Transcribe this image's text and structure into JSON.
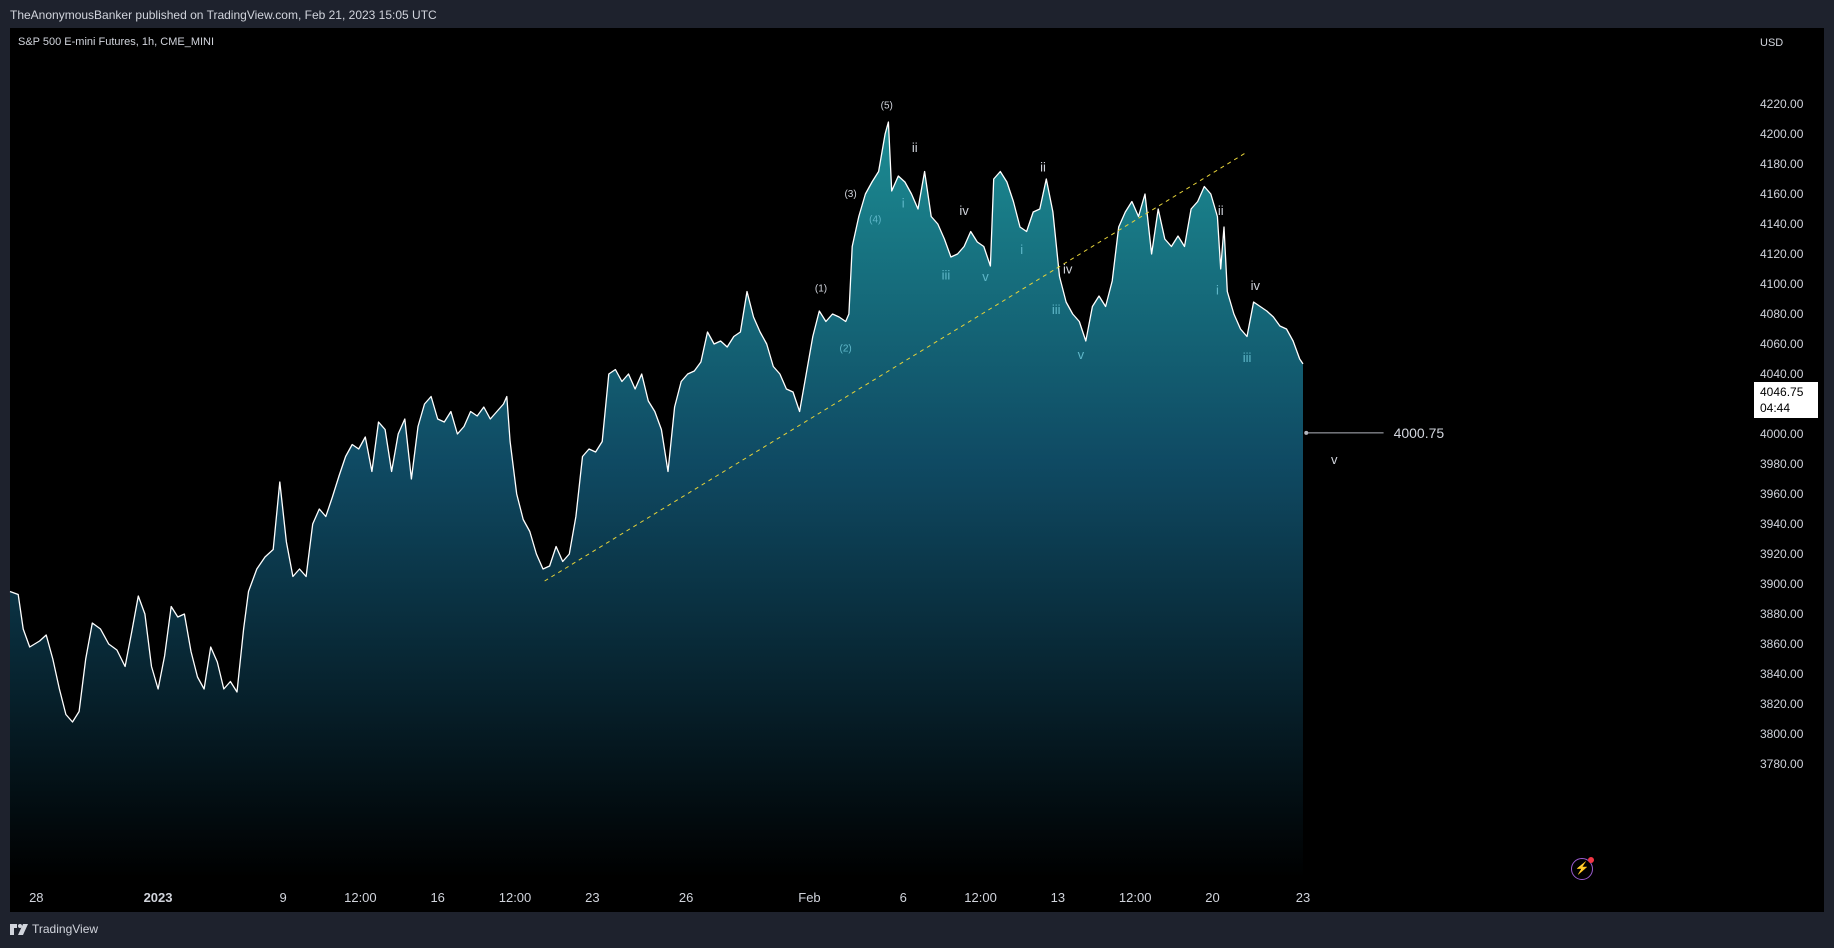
{
  "header": {
    "published": "TheAnonymousBanker published on TradingView.com, Feb 21, 2023 15:05 UTC"
  },
  "footer": {
    "brand": "TradingView",
    "logo_icon": "tradingview-logo-icon"
  },
  "colors": {
    "background": "#000000",
    "line": "#ffffff",
    "area_top": "#1c8c93",
    "area_bottom": "#000000",
    "trendline": "#e5d23a",
    "wave_primary": "#d1d4dc",
    "wave_secondary": "#5fb7c9"
  },
  "chart_data": {
    "type": "area",
    "symbol": "S&P 500 E-mini Futures, 1h, CME_MINI",
    "currency": "USD",
    "ylim": [
      3770,
      4250
    ],
    "y_ticks": [
      3780,
      3800,
      3820,
      3840,
      3860,
      3880,
      3900,
      3920,
      3940,
      3960,
      3980,
      4000,
      4020,
      4040,
      4060,
      4080,
      4100,
      4120,
      4140,
      4160,
      4180,
      4200,
      4220
    ],
    "x_ticks": [
      {
        "label": "28",
        "bold": false,
        "i": 0.16
      },
      {
        "label": "2023",
        "bold": true,
        "i": 0.9
      },
      {
        "label": "9",
        "bold": false,
        "i": 1.66
      },
      {
        "label": "12:00",
        "bold": false,
        "i": 2.13
      },
      {
        "label": "16",
        "bold": false,
        "i": 2.6
      },
      {
        "label": "12:00",
        "bold": false,
        "i": 3.07
      },
      {
        "label": "23",
        "bold": false,
        "i": 3.54
      },
      {
        "label": "26",
        "bold": false,
        "i": 4.11
      },
      {
        "label": "Feb",
        "bold": false,
        "i": 4.86
      },
      {
        "label": "6",
        "bold": false,
        "i": 5.43
      },
      {
        "label": "12:00",
        "bold": false,
        "i": 5.9
      },
      {
        "label": "13",
        "bold": false,
        "i": 6.37
      },
      {
        "label": "12:00",
        "bold": false,
        "i": 6.84
      },
      {
        "label": "20",
        "bold": false,
        "i": 7.31
      },
      {
        "label": "23",
        "bold": false,
        "i": 7.86
      }
    ],
    "series": [
      {
        "values": [
          [
            0,
            3895
          ],
          [
            0.05,
            3893
          ],
          [
            0.08,
            3870
          ],
          [
            0.12,
            3858
          ],
          [
            0.18,
            3862
          ],
          [
            0.22,
            3866
          ],
          [
            0.26,
            3850
          ],
          [
            0.3,
            3830
          ],
          [
            0.34,
            3813
          ],
          [
            0.38,
            3808
          ],
          [
            0.42,
            3815
          ],
          [
            0.46,
            3850
          ],
          [
            0.5,
            3874
          ],
          [
            0.55,
            3870
          ],
          [
            0.6,
            3860
          ],
          [
            0.65,
            3856
          ],
          [
            0.7,
            3845
          ],
          [
            0.74,
            3868
          ],
          [
            0.78,
            3892
          ],
          [
            0.82,
            3880
          ],
          [
            0.86,
            3845
          ],
          [
            0.9,
            3830
          ],
          [
            0.94,
            3852
          ],
          [
            0.98,
            3885
          ],
          [
            1.02,
            3878
          ],
          [
            1.06,
            3880
          ],
          [
            1.1,
            3855
          ],
          [
            1.14,
            3838
          ],
          [
            1.18,
            3830
          ],
          [
            1.22,
            3858
          ],
          [
            1.26,
            3848
          ],
          [
            1.3,
            3830
          ],
          [
            1.34,
            3835
          ],
          [
            1.38,
            3828
          ],
          [
            1.42,
            3870
          ],
          [
            1.45,
            3895
          ],
          [
            1.5,
            3910
          ],
          [
            1.55,
            3918
          ],
          [
            1.6,
            3923
          ],
          [
            1.64,
            3968
          ],
          [
            1.68,
            3928
          ],
          [
            1.72,
            3905
          ],
          [
            1.76,
            3910
          ],
          [
            1.8,
            3905
          ],
          [
            1.84,
            3940
          ],
          [
            1.88,
            3950
          ],
          [
            1.92,
            3945
          ],
          [
            1.96,
            3958
          ],
          [
            2.0,
            3972
          ],
          [
            2.04,
            3985
          ],
          [
            2.08,
            3993
          ],
          [
            2.12,
            3990
          ],
          [
            2.16,
            3998
          ],
          [
            2.2,
            3975
          ],
          [
            2.24,
            4008
          ],
          [
            2.28,
            4003
          ],
          [
            2.32,
            3975
          ],
          [
            2.36,
            4000
          ],
          [
            2.4,
            4010
          ],
          [
            2.44,
            3970
          ],
          [
            2.48,
            4005
          ],
          [
            2.52,
            4020
          ],
          [
            2.56,
            4025
          ],
          [
            2.6,
            4010
          ],
          [
            2.64,
            4008
          ],
          [
            2.68,
            4015
          ],
          [
            2.72,
            4000
          ],
          [
            2.76,
            4005
          ],
          [
            2.8,
            4015
          ],
          [
            2.84,
            4012
          ],
          [
            2.88,
            4018
          ],
          [
            2.92,
            4010
          ],
          [
            2.96,
            4015
          ],
          [
            3.0,
            4020
          ],
          [
            3.02,
            4025
          ],
          [
            3.04,
            3995
          ],
          [
            3.08,
            3960
          ],
          [
            3.12,
            3943
          ],
          [
            3.16,
            3935
          ],
          [
            3.2,
            3920
          ],
          [
            3.24,
            3910
          ],
          [
            3.28,
            3912
          ],
          [
            3.32,
            3925
          ],
          [
            3.36,
            3915
          ],
          [
            3.4,
            3920
          ],
          [
            3.44,
            3945
          ],
          [
            3.48,
            3985
          ],
          [
            3.52,
            3990
          ],
          [
            3.56,
            3988
          ],
          [
            3.6,
            3995
          ],
          [
            3.64,
            4040
          ],
          [
            3.68,
            4043
          ],
          [
            3.72,
            4035
          ],
          [
            3.76,
            4040
          ],
          [
            3.8,
            4030
          ],
          [
            3.84,
            4040
          ],
          [
            3.88,
            4022
          ],
          [
            3.92,
            4015
          ],
          [
            3.96,
            4003
          ],
          [
            4.0,
            3975
          ],
          [
            4.04,
            4018
          ],
          [
            4.08,
            4035
          ],
          [
            4.12,
            4040
          ],
          [
            4.16,
            4042
          ],
          [
            4.2,
            4048
          ],
          [
            4.24,
            4068
          ],
          [
            4.28,
            4060
          ],
          [
            4.32,
            4062
          ],
          [
            4.36,
            4058
          ],
          [
            4.4,
            4065
          ],
          [
            4.44,
            4068
          ],
          [
            4.48,
            4095
          ],
          [
            4.52,
            4078
          ],
          [
            4.56,
            4068
          ],
          [
            4.6,
            4060
          ],
          [
            4.64,
            4045
          ],
          [
            4.68,
            4040
          ],
          [
            4.72,
            4030
          ],
          [
            4.76,
            4028
          ],
          [
            4.8,
            4015
          ],
          [
            4.84,
            4040
          ],
          [
            4.88,
            4065
          ],
          [
            4.92,
            4082
          ],
          [
            4.96,
            4075
          ],
          [
            5.0,
            4080
          ],
          [
            5.04,
            4078
          ],
          [
            5.08,
            4075
          ],
          [
            5.1,
            4080
          ],
          [
            5.12,
            4125
          ],
          [
            5.16,
            4145
          ],
          [
            5.2,
            4160
          ],
          [
            5.24,
            4168
          ],
          [
            5.28,
            4175
          ],
          [
            5.32,
            4200
          ],
          [
            5.34,
            4208
          ],
          [
            5.36,
            4162
          ],
          [
            5.4,
            4172
          ],
          [
            5.44,
            4168
          ],
          [
            5.48,
            4160
          ],
          [
            5.52,
            4150
          ],
          [
            5.56,
            4175
          ],
          [
            5.6,
            4145
          ],
          [
            5.64,
            4140
          ],
          [
            5.68,
            4130
          ],
          [
            5.72,
            4118
          ],
          [
            5.76,
            4120
          ],
          [
            5.8,
            4125
          ],
          [
            5.84,
            4135
          ],
          [
            5.88,
            4128
          ],
          [
            5.92,
            4125
          ],
          [
            5.96,
            4112
          ],
          [
            5.98,
            4170
          ],
          [
            6.02,
            4175
          ],
          [
            6.06,
            4168
          ],
          [
            6.1,
            4155
          ],
          [
            6.14,
            4138
          ],
          [
            6.18,
            4135
          ],
          [
            6.22,
            4148
          ],
          [
            6.26,
            4150
          ],
          [
            6.3,
            4170
          ],
          [
            6.34,
            4148
          ],
          [
            6.38,
            4105
          ],
          [
            6.42,
            4088
          ],
          [
            6.46,
            4080
          ],
          [
            6.5,
            4075
          ],
          [
            6.54,
            4062
          ],
          [
            6.58,
            4085
          ],
          [
            6.62,
            4092
          ],
          [
            6.66,
            4085
          ],
          [
            6.7,
            4102
          ],
          [
            6.74,
            4138
          ],
          [
            6.78,
            4148
          ],
          [
            6.82,
            4155
          ],
          [
            6.86,
            4145
          ],
          [
            6.9,
            4160
          ],
          [
            6.94,
            4120
          ],
          [
            6.98,
            4150
          ],
          [
            7.02,
            4130
          ],
          [
            7.06,
            4125
          ],
          [
            7.1,
            4132
          ],
          [
            7.14,
            4125
          ],
          [
            7.18,
            4150
          ],
          [
            7.22,
            4155
          ],
          [
            7.26,
            4165
          ],
          [
            7.3,
            4160
          ],
          [
            7.34,
            4145
          ],
          [
            7.36,
            4110
          ],
          [
            7.38,
            4138
          ],
          [
            7.4,
            4095
          ],
          [
            7.44,
            4080
          ],
          [
            7.48,
            4070
          ],
          [
            7.52,
            4065
          ],
          [
            7.56,
            4088
          ],
          [
            7.6,
            4085
          ],
          [
            7.64,
            4082
          ],
          [
            7.68,
            4078
          ],
          [
            7.72,
            4072
          ],
          [
            7.76,
            4070
          ],
          [
            7.8,
            4062
          ],
          [
            7.84,
            4050
          ],
          [
            7.86,
            4046.75
          ]
        ]
      }
    ],
    "trendline": {
      "from": [
        3.25,
        3902
      ],
      "to": [
        7.52,
        4188
      ],
      "style": "dashed"
    },
    "wave_labels": [
      {
        "text": "(1)",
        "i": 4.93,
        "v": 4095,
        "style": "primary"
      },
      {
        "text": "(2)",
        "i": 5.08,
        "v": 4055,
        "style": "secondary"
      },
      {
        "text": "(3)",
        "i": 5.11,
        "v": 4158,
        "style": "primary"
      },
      {
        "text": "(4)",
        "i": 5.26,
        "v": 4141,
        "style": "secondary"
      },
      {
        "text": "(5)",
        "i": 5.33,
        "v": 4217,
        "style": "primary"
      },
      {
        "text": "i",
        "i": 5.43,
        "v": 4151,
        "style": "secondary"
      },
      {
        "text": "ii",
        "i": 5.5,
        "v": 4188,
        "style": "primary"
      },
      {
        "text": "iii",
        "i": 5.69,
        "v": 4103,
        "style": "secondary"
      },
      {
        "text": "iv",
        "i": 5.8,
        "v": 4146,
        "style": "primary"
      },
      {
        "text": "v",
        "i": 5.93,
        "v": 4102,
        "style": "secondary"
      },
      {
        "text": "i",
        "i": 6.15,
        "v": 4120,
        "style": "secondary"
      },
      {
        "text": "ii",
        "i": 6.28,
        "v": 4175,
        "style": "primary"
      },
      {
        "text": "iv",
        "i": 6.43,
        "v": 4107,
        "style": "primary"
      },
      {
        "text": "iii",
        "i": 6.36,
        "v": 4080,
        "style": "secondary"
      },
      {
        "text": "v",
        "i": 6.51,
        "v": 4050,
        "style": "secondary"
      },
      {
        "text": "ii",
        "i": 7.36,
        "v": 4146,
        "style": "primary"
      },
      {
        "text": "i",
        "i": 7.34,
        "v": 4093,
        "style": "secondary"
      },
      {
        "text": "iv",
        "i": 7.57,
        "v": 4096,
        "style": "primary"
      },
      {
        "text": "iii",
        "i": 7.52,
        "v": 4048,
        "style": "secondary"
      },
      {
        "text": "v",
        "i": 8.05,
        "v": 3980,
        "style": "primary"
      }
    ],
    "target_line": {
      "value": 4000.75,
      "label": "4000.75",
      "from_i": 7.88,
      "to_i": 8.35
    },
    "last_price": {
      "value": 4046.75,
      "label": "4046.75",
      "countdown": "04:44"
    }
  }
}
